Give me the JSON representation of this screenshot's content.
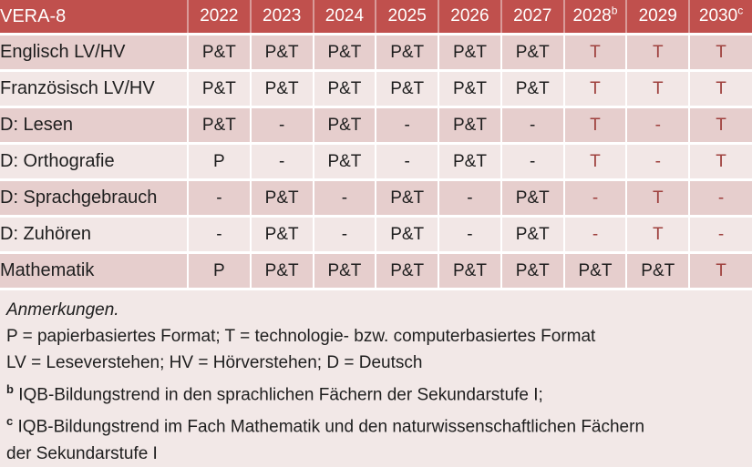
{
  "table": {
    "header": {
      "label": "VERA-8",
      "years": [
        {
          "text": "2022",
          "sup": ""
        },
        {
          "text": "2023",
          "sup": ""
        },
        {
          "text": "2024",
          "sup": ""
        },
        {
          "text": "2025",
          "sup": ""
        },
        {
          "text": "2026",
          "sup": ""
        },
        {
          "text": "2027",
          "sup": ""
        },
        {
          "text": "2028",
          "sup": "b"
        },
        {
          "text": "2029",
          "sup": ""
        },
        {
          "text": "2030",
          "sup": "c"
        }
      ]
    },
    "rows": [
      {
        "label": "Englisch LV/HV",
        "cells": [
          {
            "v": "P&T"
          },
          {
            "v": "P&T"
          },
          {
            "v": "P&T"
          },
          {
            "v": "P&T"
          },
          {
            "v": "P&T"
          },
          {
            "v": "P&T"
          },
          {
            "v": "T",
            "red": true
          },
          {
            "v": "T",
            "red": true
          },
          {
            "v": "T",
            "red": true
          }
        ]
      },
      {
        "label": "Französisch LV/HV",
        "cells": [
          {
            "v": "P&T"
          },
          {
            "v": "P&T"
          },
          {
            "v": "P&T"
          },
          {
            "v": "P&T"
          },
          {
            "v": "P&T"
          },
          {
            "v": "P&T"
          },
          {
            "v": "T",
            "red": true
          },
          {
            "v": "T",
            "red": true
          },
          {
            "v": "T",
            "red": true
          }
        ]
      },
      {
        "label": "D: Lesen",
        "cells": [
          {
            "v": "P&T"
          },
          {
            "v": "-"
          },
          {
            "v": "P&T"
          },
          {
            "v": "-"
          },
          {
            "v": "P&T"
          },
          {
            "v": "-"
          },
          {
            "v": "T",
            "red": true
          },
          {
            "v": "-",
            "red": true
          },
          {
            "v": "T",
            "red": true
          }
        ]
      },
      {
        "label": "D: Orthografie",
        "cells": [
          {
            "v": "P"
          },
          {
            "v": "-"
          },
          {
            "v": "P&T"
          },
          {
            "v": "-"
          },
          {
            "v": "P&T"
          },
          {
            "v": "-"
          },
          {
            "v": "T",
            "red": true
          },
          {
            "v": "-",
            "red": true
          },
          {
            "v": "T",
            "red": true
          }
        ]
      },
      {
        "label": "D: Sprachgebrauch",
        "cells": [
          {
            "v": "-"
          },
          {
            "v": "P&T"
          },
          {
            "v": "-"
          },
          {
            "v": "P&T"
          },
          {
            "v": "-"
          },
          {
            "v": "P&T"
          },
          {
            "v": "-",
            "red": true
          },
          {
            "v": "T",
            "red": true
          },
          {
            "v": "-",
            "red": true
          }
        ]
      },
      {
        "label": "D: Zuhören",
        "cells": [
          {
            "v": "-"
          },
          {
            "v": "P&T"
          },
          {
            "v": "-"
          },
          {
            "v": "P&T"
          },
          {
            "v": "-"
          },
          {
            "v": "P&T"
          },
          {
            "v": "-",
            "red": true
          },
          {
            "v": "T",
            "red": true
          },
          {
            "v": "-",
            "red": true
          }
        ]
      },
      {
        "label": "Mathematik",
        "cells": [
          {
            "v": "P"
          },
          {
            "v": "P&T"
          },
          {
            "v": "P&T"
          },
          {
            "v": "P&T"
          },
          {
            "v": "P&T"
          },
          {
            "v": "P&T"
          },
          {
            "v": "P&T"
          },
          {
            "v": "P&T"
          },
          {
            "v": "T",
            "red": true
          }
        ]
      }
    ]
  },
  "notes": {
    "title": "Anmerkungen.",
    "format_legend": "P = papierbasiertes Format; T = technologie- bzw. computerbasiertes Format",
    "abbrev_legend": "LV = Leseverstehen; HV = Hörverstehen; D = Deutsch",
    "footnote_b_marker": "b",
    "footnote_b": "IQB-Bildungstrend in den sprachlichen Fächern der Sekundarstufe I;",
    "footnote_c_marker": "c",
    "footnote_c": "IQB-Bildungstrend im Fach Mathematik und den naturwissenschaftlichen Fächern der Sekundarstufe I"
  },
  "colors": {
    "header_bg": "#C0504D",
    "header_text": "#FFFFFF",
    "row_dark": "#E6CECD",
    "row_light": "#F2E7E6",
    "notes_bg": "#F2E8E7",
    "body_text": "#1E1E1E",
    "accent_red": "#9E403D"
  }
}
